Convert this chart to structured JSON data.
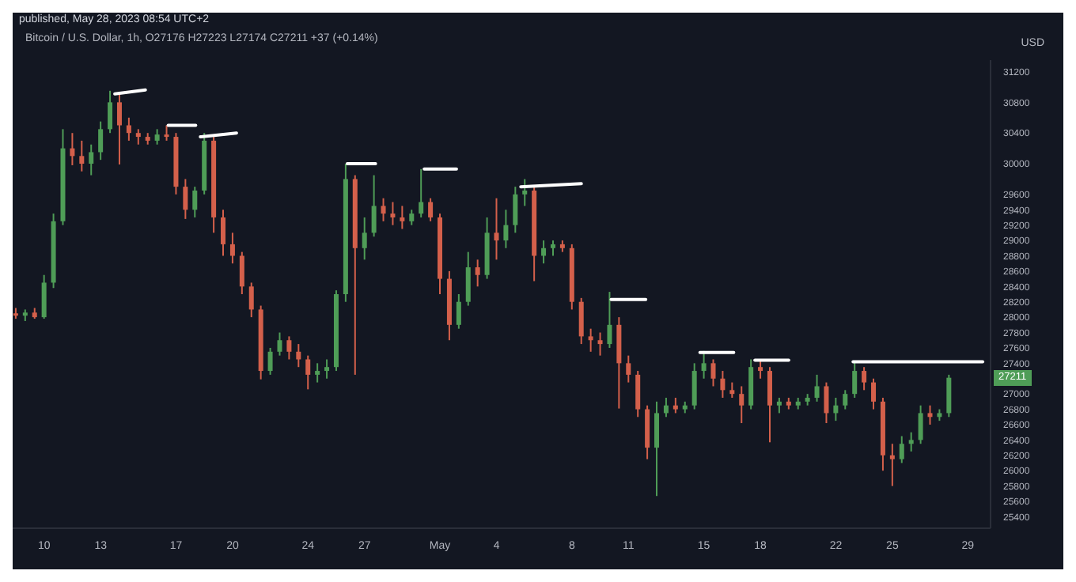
{
  "chart_data": {
    "type": "candlestick",
    "subtitle": "published, May 28, 2023 08:54 UTC+2",
    "title": "Bitcoin / U.S. Dollar, 1h, O27176 H27223 L27174 C27211 +37 (+0.14%)",
    "ylabel": "USD",
    "x": [
      "2023-04-08T12:00",
      "2023-04-09T00:00",
      "2023-04-09T12:00",
      "2023-04-10T00:00",
      "2023-04-10T12:00",
      "2023-04-11T00:00",
      "2023-04-11T12:00",
      "2023-04-12T00:00",
      "2023-04-12T12:00",
      "2023-04-13T00:00",
      "2023-04-13T12:00",
      "2023-04-14T00:00",
      "2023-04-14T12:00",
      "2023-04-15T00:00",
      "2023-04-15T12:00",
      "2023-04-16T00:00",
      "2023-04-16T12:00",
      "2023-04-17T00:00",
      "2023-04-17T12:00",
      "2023-04-18T00:00",
      "2023-04-18T12:00",
      "2023-04-19T00:00",
      "2023-04-19T12:00",
      "2023-04-20T00:00",
      "2023-04-20T12:00",
      "2023-04-21T00:00",
      "2023-04-21T12:00",
      "2023-04-22T00:00",
      "2023-04-22T12:00",
      "2023-04-23T00:00",
      "2023-04-23T12:00",
      "2023-04-24T00:00",
      "2023-04-24T12:00",
      "2023-04-25T00:00",
      "2023-04-25T12:00",
      "2023-04-26T00:00",
      "2023-04-26T12:00",
      "2023-04-27T00:00",
      "2023-04-27T12:00",
      "2023-04-28T00:00",
      "2023-04-28T12:00",
      "2023-04-29T00:00",
      "2023-04-29T12:00",
      "2023-04-30T00:00",
      "2023-04-30T12:00",
      "2023-05-01T00:00",
      "2023-05-01T12:00",
      "2023-05-02T00:00",
      "2023-05-02T12:00",
      "2023-05-03T00:00",
      "2023-05-03T12:00",
      "2023-05-04T00:00",
      "2023-05-04T12:00",
      "2023-05-05T00:00",
      "2023-05-05T12:00",
      "2023-05-06T00:00",
      "2023-05-06T12:00",
      "2023-05-07T00:00",
      "2023-05-07T12:00",
      "2023-05-08T00:00",
      "2023-05-08T12:00",
      "2023-05-09T00:00",
      "2023-05-09T12:00",
      "2023-05-10T00:00",
      "2023-05-10T12:00",
      "2023-05-11T00:00",
      "2023-05-11T12:00",
      "2023-05-12T00:00",
      "2023-05-12T12:00",
      "2023-05-13T00:00",
      "2023-05-13T12:00",
      "2023-05-14T00:00",
      "2023-05-14T12:00",
      "2023-05-15T00:00",
      "2023-05-15T12:00",
      "2023-05-16T00:00",
      "2023-05-16T12:00",
      "2023-05-17T00:00",
      "2023-05-17T12:00",
      "2023-05-18T00:00",
      "2023-05-18T12:00",
      "2023-05-19T00:00",
      "2023-05-19T12:00",
      "2023-05-20T00:00",
      "2023-05-20T12:00",
      "2023-05-21T00:00",
      "2023-05-21T12:00",
      "2023-05-22T00:00",
      "2023-05-22T12:00",
      "2023-05-23T00:00",
      "2023-05-23T12:00",
      "2023-05-24T00:00",
      "2023-05-24T12:00",
      "2023-05-25T00:00",
      "2023-05-25T12:00",
      "2023-05-26T00:00",
      "2023-05-26T12:00",
      "2023-05-27T00:00",
      "2023-05-27T12:00",
      "2023-05-28T00:00"
    ],
    "ohlc": [
      [
        28050,
        28120,
        27980,
        28020
      ],
      [
        28020,
        28100,
        27950,
        28060
      ],
      [
        28060,
        28120,
        27980,
        28000
      ],
      [
        28000,
        28550,
        27980,
        28450
      ],
      [
        28450,
        29350,
        28380,
        29250
      ],
      [
        29250,
        30450,
        29200,
        30200
      ],
      [
        30200,
        30400,
        29980,
        30100
      ],
      [
        30100,
        30300,
        29900,
        30000
      ],
      [
        30000,
        30250,
        29850,
        30150
      ],
      [
        30150,
        30550,
        30050,
        30450
      ],
      [
        30450,
        30950,
        30400,
        30800
      ],
      [
        30800,
        30900,
        29990,
        30500
      ],
      [
        30500,
        30600,
        30300,
        30400
      ],
      [
        30400,
        30450,
        30250,
        30350
      ],
      [
        30350,
        30400,
        30250,
        30300
      ],
      [
        30300,
        30450,
        30250,
        30380
      ],
      [
        30380,
        30500,
        30300,
        30350
      ],
      [
        30350,
        30400,
        29600,
        29700
      ],
      [
        29700,
        29800,
        29280,
        29400
      ],
      [
        29400,
        29700,
        29300,
        29650
      ],
      [
        29650,
        30400,
        29600,
        30300
      ],
      [
        30300,
        30380,
        29100,
        29300
      ],
      [
        29300,
        29400,
        28800,
        28950
      ],
      [
        28950,
        29100,
        28700,
        28800
      ],
      [
        28800,
        28850,
        28300,
        28400
      ],
      [
        28400,
        28450,
        28000,
        28100
      ],
      [
        28100,
        28150,
        27190,
        27300
      ],
      [
        27300,
        27600,
        27250,
        27550
      ],
      [
        27550,
        27800,
        27500,
        27700
      ],
      [
        27700,
        27750,
        27450,
        27550
      ],
      [
        27550,
        27650,
        27350,
        27450
      ],
      [
        27450,
        27500,
        27060,
        27250
      ],
      [
        27250,
        27400,
        27150,
        27300
      ],
      [
        27300,
        27450,
        27200,
        27350
      ],
      [
        27350,
        28350,
        27300,
        28300
      ],
      [
        28300,
        30000,
        28200,
        29800
      ],
      [
        29800,
        29850,
        27250,
        28900
      ],
      [
        28900,
        29300,
        28750,
        29100
      ],
      [
        29100,
        29850,
        29050,
        29450
      ],
      [
        29450,
        29550,
        29250,
        29350
      ],
      [
        29350,
        29500,
        29200,
        29300
      ],
      [
        29300,
        29450,
        29150,
        29250
      ],
      [
        29250,
        29400,
        29200,
        29350
      ],
      [
        29350,
        29930,
        29300,
        29500
      ],
      [
        29500,
        29550,
        29250,
        29300
      ],
      [
        29300,
        29350,
        28300,
        28500
      ],
      [
        28500,
        28600,
        27700,
        27900
      ],
      [
        27900,
        28300,
        27850,
        28200
      ],
      [
        28200,
        28850,
        28150,
        28650
      ],
      [
        28650,
        28750,
        28400,
        28550
      ],
      [
        28550,
        29300,
        28500,
        29100
      ],
      [
        29100,
        29550,
        28750,
        29000
      ],
      [
        29000,
        29400,
        28900,
        29200
      ],
      [
        29200,
        29700,
        29100,
        29600
      ],
      [
        29600,
        29800,
        29450,
        29650
      ],
      [
        29650,
        29700,
        28470,
        28800
      ],
      [
        28800,
        29000,
        28700,
        28900
      ],
      [
        28900,
        29000,
        28800,
        28950
      ],
      [
        28950,
        29000,
        28850,
        28900
      ],
      [
        28900,
        28950,
        28100,
        28200
      ],
      [
        28200,
        28250,
        27650,
        27750
      ],
      [
        27750,
        27850,
        27550,
        27700
      ],
      [
        27700,
        27800,
        27500,
        27650
      ],
      [
        27650,
        28330,
        27600,
        27900
      ],
      [
        27900,
        28000,
        26810,
        27400
      ],
      [
        27400,
        27500,
        27150,
        27250
      ],
      [
        27250,
        27300,
        26700,
        26800
      ],
      [
        26800,
        26850,
        26150,
        26300
      ],
      [
        26300,
        26900,
        25670,
        26750
      ],
      [
        26750,
        26950,
        26700,
        26850
      ],
      [
        26850,
        26950,
        26750,
        26800
      ],
      [
        26800,
        26900,
        26750,
        26850
      ],
      [
        26850,
        27400,
        26800,
        27300
      ],
      [
        27300,
        27560,
        27200,
        27400
      ],
      [
        27400,
        27450,
        27100,
        27200
      ],
      [
        27200,
        27300,
        26950,
        27050
      ],
      [
        27050,
        27150,
        26950,
        27000
      ],
      [
        27000,
        27100,
        26620,
        26850
      ],
      [
        26850,
        27450,
        26800,
        27350
      ],
      [
        27350,
        27450,
        27200,
        27300
      ],
      [
        27300,
        27350,
        26370,
        26850
      ],
      [
        26850,
        26950,
        26750,
        26900
      ],
      [
        26900,
        26950,
        26800,
        26850
      ],
      [
        26850,
        26950,
        26800,
        26900
      ],
      [
        26900,
        27000,
        26850,
        26950
      ],
      [
        26950,
        27250,
        26900,
        27100
      ],
      [
        27100,
        27150,
        26620,
        26750
      ],
      [
        26750,
        26950,
        26650,
        26850
      ],
      [
        26850,
        27050,
        26800,
        27000
      ],
      [
        27000,
        27420,
        26950,
        27300
      ],
      [
        27300,
        27350,
        27050,
        27150
      ],
      [
        27150,
        27200,
        26800,
        26900
      ],
      [
        26900,
        26950,
        26000,
        26200
      ],
      [
        26200,
        26350,
        25800,
        26150
      ],
      [
        26150,
        26450,
        26100,
        26350
      ],
      [
        26350,
        26500,
        26250,
        26400
      ],
      [
        26400,
        26850,
        26350,
        26750
      ],
      [
        26750,
        26850,
        26600,
        26700
      ],
      [
        26700,
        26800,
        26650,
        26750
      ],
      [
        26750,
        27250,
        26700,
        27211
      ]
    ],
    "colors": [
      "#d4604b",
      "#4f9d57",
      "#d4604b",
      "#4f9d57",
      "#4f9d57",
      "#4f9d57",
      "#d4604b",
      "#d4604b",
      "#4f9d57",
      "#4f9d57",
      "#4f9d57",
      "#d4604b",
      "#d4604b",
      "#d4604b",
      "#d4604b",
      "#4f9d57",
      "#d4604b",
      "#d4604b",
      "#d4604b",
      "#4f9d57",
      "#4f9d57",
      "#d4604b",
      "#d4604b",
      "#d4604b",
      "#d4604b",
      "#d4604b",
      "#d4604b",
      "#4f9d57",
      "#4f9d57",
      "#d4604b",
      "#d4604b",
      "#d4604b",
      "#4f9d57",
      "#4f9d57",
      "#4f9d57",
      "#4f9d57",
      "#d4604b",
      "#4f9d57",
      "#4f9d57",
      "#d4604b",
      "#d4604b",
      "#d4604b",
      "#4f9d57",
      "#4f9d57",
      "#d4604b",
      "#d4604b",
      "#d4604b",
      "#4f9d57",
      "#4f9d57",
      "#d4604b",
      "#4f9d57",
      "#d4604b",
      "#4f9d57",
      "#4f9d57",
      "#4f9d57",
      "#d4604b",
      "#4f9d57",
      "#4f9d57",
      "#d4604b",
      "#d4604b",
      "#d4604b",
      "#d4604b",
      "#d4604b",
      "#4f9d57",
      "#d4604b",
      "#d4604b",
      "#d4604b",
      "#d4604b",
      "#4f9d57",
      "#4f9d57",
      "#d4604b",
      "#4f9d57",
      "#4f9d57",
      "#4f9d57",
      "#d4604b",
      "#d4604b",
      "#d4604b",
      "#d4604b",
      "#4f9d57",
      "#d4604b",
      "#d4604b",
      "#4f9d57",
      "#d4604b",
      "#4f9d57",
      "#4f9d57",
      "#4f9d57",
      "#d4604b",
      "#4f9d57",
      "#4f9d57",
      "#4f9d57",
      "#d4604b",
      "#d4604b",
      "#d4604b",
      "#d4604b",
      "#4f9d57",
      "#4f9d57",
      "#4f9d57",
      "#d4604b",
      "#4f9d57",
      "#4f9d57"
    ],
    "series": [
      {
        "type": "line",
        "color": "#ffffff",
        "x": [
          "2023-04-13T18:00",
          "2023-04-15T09:00"
        ],
        "values": [
          30910,
          30960
        ]
      },
      {
        "type": "line",
        "color": "#ffffff",
        "x": [
          "2023-04-16T14:00",
          "2023-04-18T01:00"
        ],
        "values": [
          30500,
          30500
        ]
      },
      {
        "type": "line",
        "color": "#ffffff",
        "x": [
          "2023-04-18T07:00",
          "2023-04-20T05:00"
        ],
        "values": [
          30350,
          30400
        ]
      },
      {
        "type": "line",
        "color": "#ffffff",
        "x": [
          "2023-04-26T02:00",
          "2023-04-27T14:00"
        ],
        "values": [
          30000,
          30000
        ]
      },
      {
        "type": "line",
        "color": "#ffffff",
        "x": [
          "2023-04-30T04:00",
          "2023-05-01T21:00"
        ],
        "values": [
          29930,
          29930
        ]
      },
      {
        "type": "line",
        "color": "#ffffff",
        "x": [
          "2023-05-05T07:00",
          "2023-05-08T12:00"
        ],
        "values": [
          29700,
          29740
        ]
      },
      {
        "type": "line",
        "color": "#ffffff",
        "x": [
          "2023-05-10T02:00",
          "2023-05-11T22:00"
        ],
        "values": [
          28230,
          28230
        ]
      },
      {
        "type": "line",
        "color": "#ffffff",
        "x": [
          "2023-05-14T19:00",
          "2023-05-16T14:00"
        ],
        "values": [
          27540,
          27540
        ]
      },
      {
        "type": "line",
        "color": "#ffffff",
        "x": [
          "2023-05-17T17:00",
          "2023-05-19T12:00"
        ],
        "values": [
          27440,
          27440
        ]
      },
      {
        "type": "line",
        "color": "#ffffff",
        "x": [
          "2023-05-22T22:00",
          "2023-05-29T19:00"
        ],
        "values": [
          27420,
          27420
        ]
      }
    ],
    "xlim": [
      "2023-04-08T08:00",
      "2023-05-30T05:00"
    ],
    "xticks": [
      {
        "value": "2023-04-10",
        "label": "10"
      },
      {
        "value": "2023-04-13",
        "label": "13"
      },
      {
        "value": "2023-04-17",
        "label": "17"
      },
      {
        "value": "2023-04-20",
        "label": "20"
      },
      {
        "value": "2023-04-24",
        "label": "24"
      },
      {
        "value": "2023-04-27",
        "label": "27"
      },
      {
        "value": "2023-05-01",
        "label": "May"
      },
      {
        "value": "2023-05-04",
        "label": "4"
      },
      {
        "value": "2023-05-08",
        "label": "8"
      },
      {
        "value": "2023-05-11",
        "label": "11"
      },
      {
        "value": "2023-05-15",
        "label": "15"
      },
      {
        "value": "2023-05-18",
        "label": "18"
      },
      {
        "value": "2023-05-22",
        "label": "22"
      },
      {
        "value": "2023-05-25",
        "label": "25"
      },
      {
        "value": "2023-05-29",
        "label": "29"
      }
    ],
    "ylim": [
      25250,
      31350
    ],
    "yticks": [
      25400,
      25600,
      25800,
      26000,
      26200,
      26400,
      26600,
      26800,
      27000,
      27400,
      27600,
      27800,
      28000,
      28200,
      28400,
      28600,
      28800,
      29000,
      29200,
      29400,
      29600,
      30000,
      30400,
      30800,
      31200
    ],
    "annotations": [
      "27211"
    ]
  }
}
